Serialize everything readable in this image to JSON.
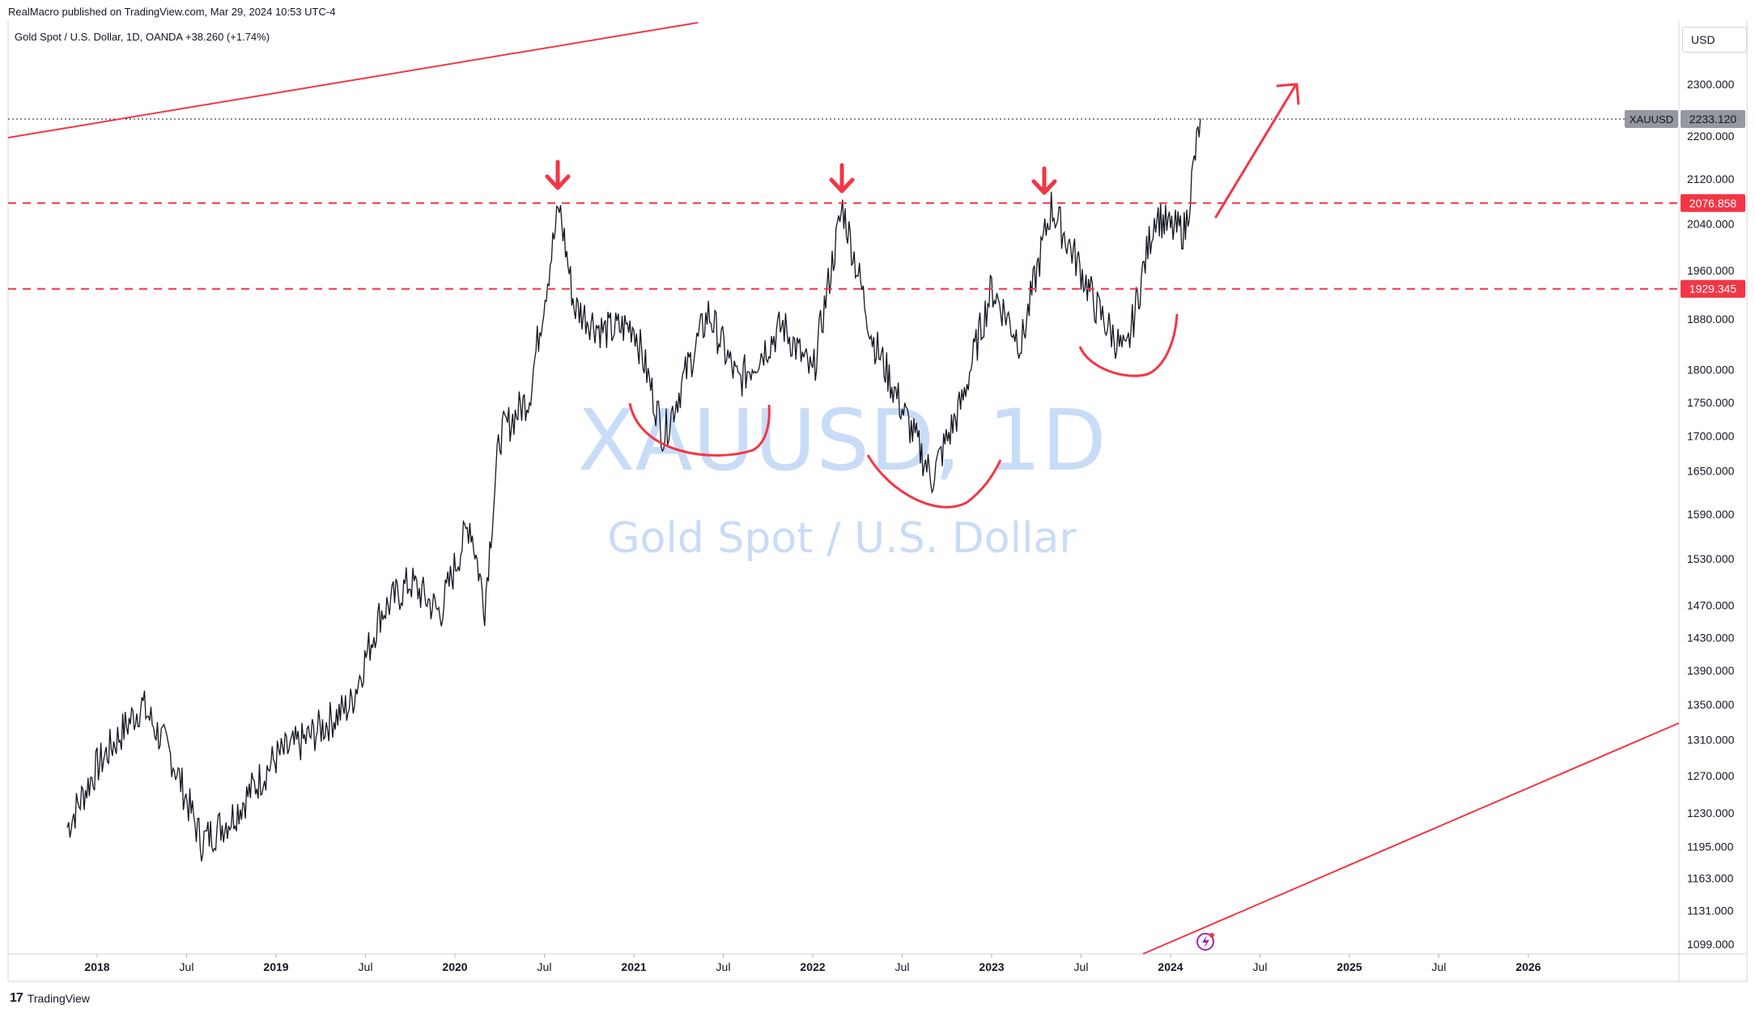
{
  "header": {
    "credit": "RealMacro published on TradingView.com, Mar 29, 2024 10:53 UTC-4",
    "symbol_line": "Gold Spot / U.S. Dollar, 1D, OANDA  +38.260 (+1.74%)"
  },
  "watermark": {
    "symbol": "XAUUSD, 1D",
    "name": "Gold Spot / U.S. Dollar"
  },
  "price_scale": {
    "currency": "USD",
    "ticks": [
      "2300.000",
      "2200.000",
      "2120.000",
      "2040.000",
      "1960.000",
      "1880.000",
      "1800.000",
      "1750.000",
      "1700.000",
      "1650.000",
      "1590.000",
      "1530.000",
      "1470.000",
      "1430.000",
      "1390.000",
      "1350.000",
      "1310.000",
      "1270.000",
      "1230.000",
      "1195.000",
      "1163.000",
      "1131.000",
      "1099.000"
    ],
    "last_label": "XAUUSD",
    "last_price": "2233.120",
    "level_upper": "2076.858",
    "level_lower": "1929.345"
  },
  "time_scale": {
    "ticks": [
      {
        "label": "2018",
        "major": true
      },
      {
        "label": "Jul",
        "major": false
      },
      {
        "label": "2019",
        "major": true
      },
      {
        "label": "Jul",
        "major": false
      },
      {
        "label": "2020",
        "major": true
      },
      {
        "label": "Jul",
        "major": false
      },
      {
        "label": "2021",
        "major": true
      },
      {
        "label": "Jul",
        "major": false
      },
      {
        "label": "2022",
        "major": true
      },
      {
        "label": "Jul",
        "major": false
      },
      {
        "label": "2023",
        "major": true
      },
      {
        "label": "Jul",
        "major": false
      },
      {
        "label": "2024",
        "major": true
      },
      {
        "label": "Jul",
        "major": false
      },
      {
        "label": "2025",
        "major": true
      },
      {
        "label": "Jul",
        "major": false
      },
      {
        "label": "2026",
        "major": true
      }
    ]
  },
  "colors": {
    "price_line": "#131722",
    "annotation": "#f23645",
    "watermark": "#c9dcf7",
    "last_badge": "#9598a1",
    "grid_border": "#d1d4dc"
  },
  "footer": {
    "brand": "TradingView"
  },
  "chart_data": {
    "type": "line",
    "scale": "log",
    "ylim": [
      1080,
      2380
    ],
    "x": [
      "2017-11",
      "2018-01",
      "2018-04",
      "2018-06",
      "2018-08",
      "2018-10",
      "2019-01",
      "2019-03",
      "2019-06",
      "2019-08",
      "2019-10",
      "2019-12",
      "2020-02",
      "2020-03",
      "2020-04",
      "2020-06",
      "2020-08",
      "2020-09",
      "2020-11",
      "2021-01",
      "2021-03",
      "2021-06",
      "2021-08",
      "2021-11",
      "2022-01",
      "2022-03",
      "2022-05",
      "2022-07",
      "2022-09",
      "2022-11",
      "2023-01",
      "2023-03",
      "2023-05",
      "2023-07",
      "2023-08",
      "2023-10",
      "2023-12",
      "2024-01",
      "2024-02",
      "2024-03"
    ],
    "series": [
      {
        "values": [
          1215,
          1280,
          1350,
          1290,
          1200,
          1225,
          1290,
          1310,
          1350,
          1460,
          1500,
          1460,
          1580,
          1470,
          1700,
          1760,
          2070,
          1900,
          1860,
          1870,
          1700,
          1890,
          1780,
          1870,
          1790,
          2070,
          1850,
          1740,
          1640,
          1750,
          1930,
          1840,
          2070,
          1960,
          1900,
          1820,
          2060,
          2030,
          2030,
          2233
        ]
      }
    ],
    "levels": [
      2076.858,
      1929.345
    ]
  }
}
